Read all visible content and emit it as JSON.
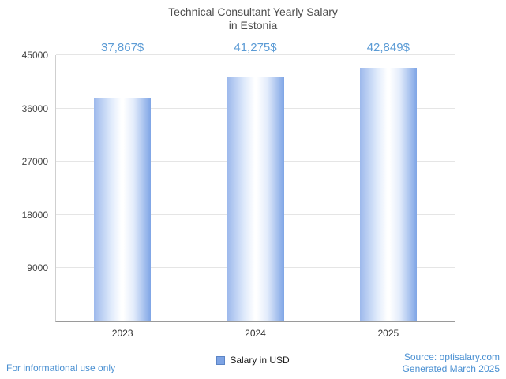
{
  "title": {
    "line1": "Technical Consultant Yearly Salary",
    "line2": "in Estonia"
  },
  "chart_data": {
    "type": "bar",
    "title": "Technical Consultant Yearly Salary in Estonia",
    "categories": [
      "2023",
      "2024",
      "2025"
    ],
    "values": [
      37867,
      41275,
      42849
    ],
    "value_labels": [
      "37,867$",
      "41,275$",
      "42,849$"
    ],
    "xlabel": "",
    "ylabel": "",
    "ylim": [
      0,
      45000
    ],
    "yticks": [
      9000,
      18000,
      27000,
      36000,
      45000
    ],
    "grid": true,
    "legend_position": "bottom",
    "colors": {
      "bar_edge": "#7fa5e6",
      "bar_center": "#ffffff",
      "value_label": "#5b9bd5",
      "footer_link": "#4a90d2",
      "gridline": "#e5e5e5"
    }
  },
  "legend": {
    "label": "Salary in USD"
  },
  "footer": {
    "left": "For informational use only",
    "source": "Source: optisalary.com",
    "generated": "Generated March 2025"
  }
}
